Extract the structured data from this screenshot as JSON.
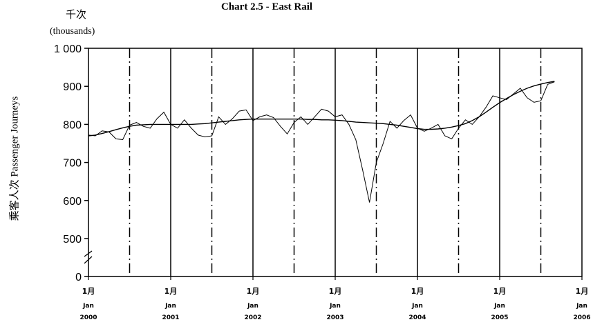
{
  "chart_data": {
    "type": "line",
    "title": "Chart 2.5 -  East Rail",
    "unit_label_cn": "千次",
    "unit_label_en": "(thousands)",
    "ylabel": "乘客人次  Passenger Journeys",
    "y_ticks": [
      "0",
      "500",
      "600",
      "700",
      "800",
      "900",
      "1 000"
    ],
    "y_break": true,
    "ylim": [
      450,
      1000
    ],
    "x_axis": {
      "start": "2000-01",
      "end": "2006-01",
      "solid_gridlines_at": [
        "2001-01",
        "2002-01",
        "2003-01",
        "2004-01",
        "2005-01"
      ],
      "dashdot_gridlines_at": [
        "2000-07",
        "2001-07",
        "2002-07",
        "2003-07",
        "2004-07",
        "2005-07"
      ],
      "tick_labels": [
        {
          "month": "1月",
          "jan": "Jan",
          "year": "2000"
        },
        {
          "month": "1月",
          "jan": "Jan",
          "year": "2001"
        },
        {
          "month": "1月",
          "jan": "Jan",
          "year": "2002"
        },
        {
          "month": "1月",
          "jan": "Jan",
          "year": "2003"
        },
        {
          "month": "1月",
          "jan": "Jan",
          "year": "2004"
        },
        {
          "month": "1月",
          "jan": "Jan",
          "year": "2005"
        },
        {
          "month": "1月",
          "jan": "Jan",
          "year": "2006"
        }
      ]
    },
    "series": [
      {
        "style": "monthly",
        "values": [
          772,
          770,
          783,
          780,
          762,
          760,
          798,
          805,
          795,
          790,
          815,
          832,
          800,
          790,
          812,
          790,
          772,
          767,
          770,
          820,
          800,
          815,
          835,
          838,
          810,
          820,
          825,
          818,
          795,
          775,
          805,
          820,
          800,
          820,
          840,
          835,
          820,
          825,
          800,
          760,
          680,
          595,
          700,
          750,
          808,
          790,
          810,
          825,
          790,
          782,
          790,
          800,
          770,
          762,
          790,
          812,
          800,
          820,
          845,
          875,
          870,
          865,
          880,
          895,
          870,
          858,
          862,
          905,
          912
        ]
      },
      {
        "style": "trend",
        "values": [
          770,
          772,
          776,
          781,
          786,
          791,
          795,
          798,
          799,
          800,
          800,
          800,
          800,
          800,
          800,
          800,
          801,
          802,
          804,
          806,
          808,
          810,
          812,
          813,
          814,
          814,
          814,
          814,
          814,
          814,
          814,
          814,
          813,
          813,
          812,
          812,
          811,
          810,
          808,
          806,
          805,
          804,
          803,
          802,
          800,
          798,
          795,
          792,
          789,
          787,
          787,
          788,
          790,
          793,
          797,
          802,
          810,
          820,
          832,
          845,
          857,
          868,
          878,
          887,
          895,
          901,
          906,
          910,
          913
        ]
      }
    ]
  }
}
